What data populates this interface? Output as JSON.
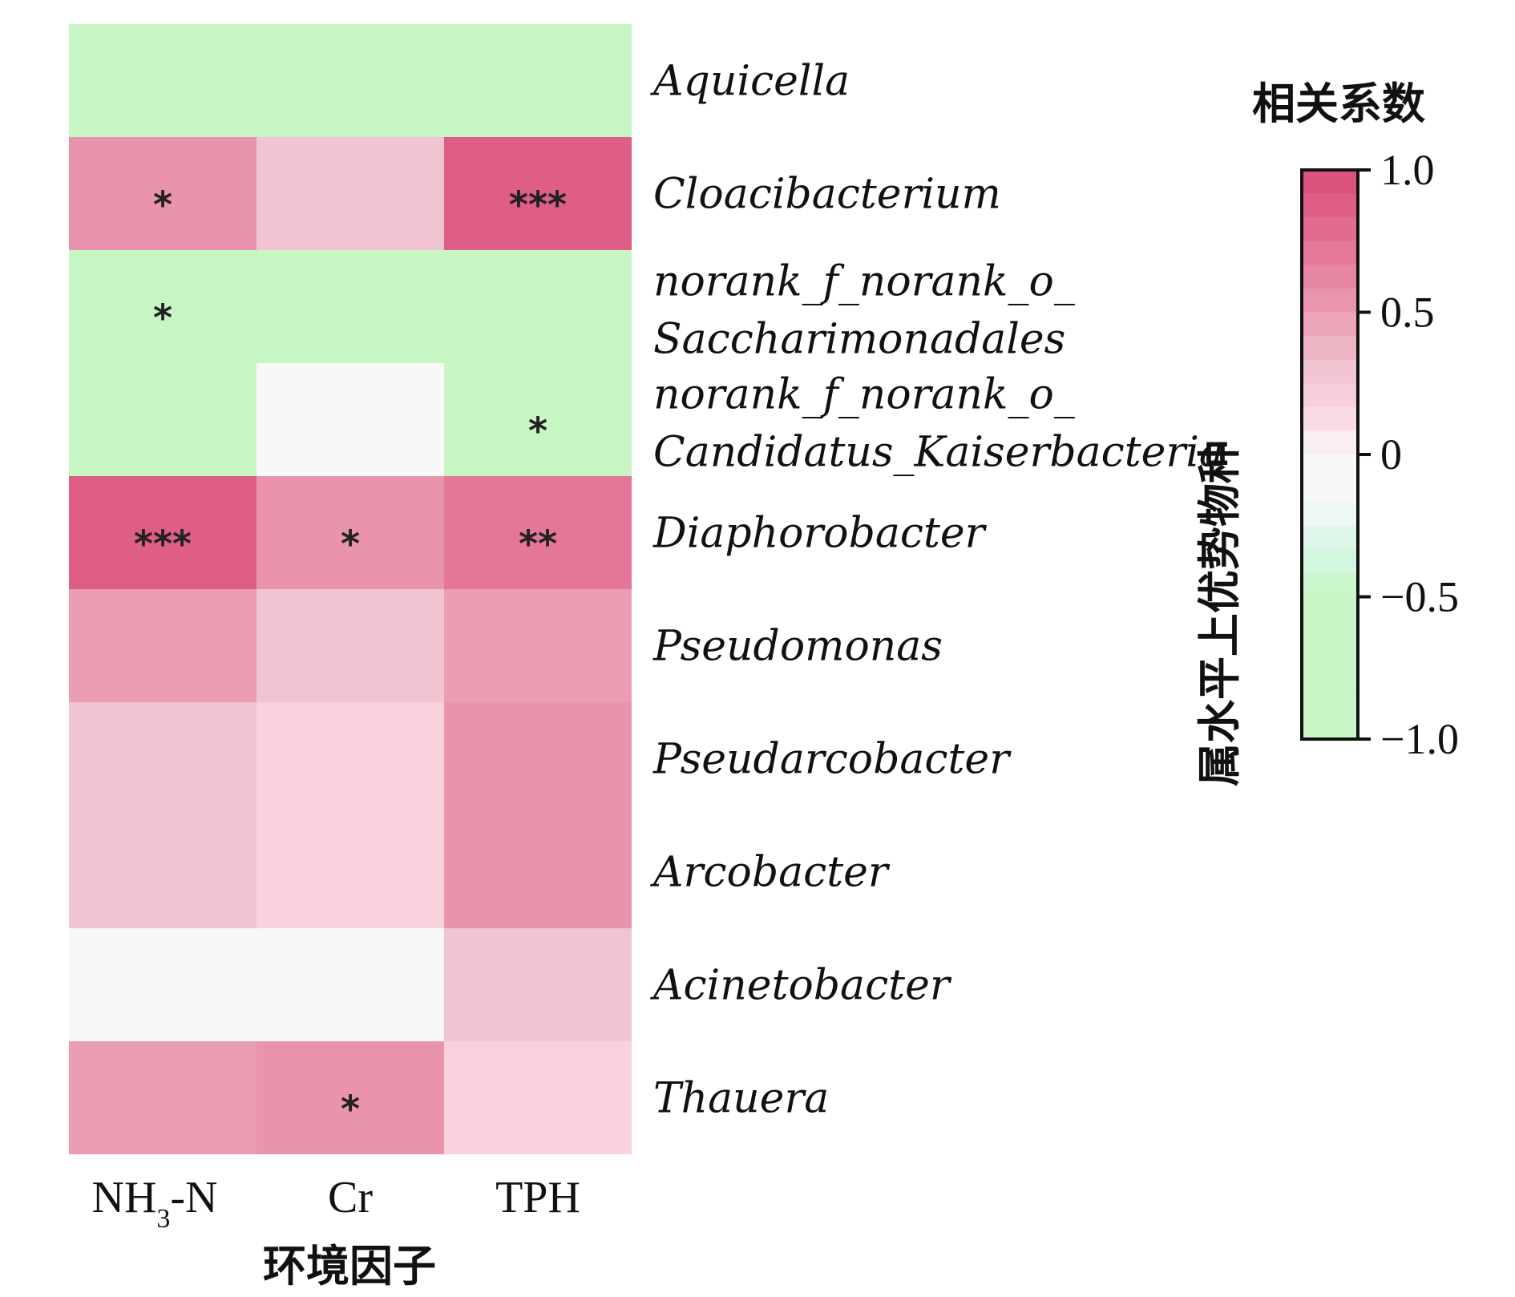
{
  "chart_data": {
    "type": "heatmap",
    "xlabel": "环境因子",
    "ylabel": "属水平上优势物种",
    "legend_title": "相关系数",
    "x_categories": [
      {
        "main": "NH",
        "sub": "3",
        "rest": "-N"
      },
      {
        "main": "Cr",
        "sub": "",
        "rest": ""
      },
      {
        "main": "TPH",
        "sub": "",
        "rest": ""
      }
    ],
    "y_label_lines": [
      [
        "Aquicella"
      ],
      [
        "Cloacibacterium"
      ],
      [
        "norank_f_norank_o_",
        "Saccharimonadales"
      ],
      [
        "norank_f_norank_o_",
        "Candidatus_Kaiserbacteria"
      ],
      [
        "Diaphorobacter"
      ],
      [
        "Pseudomonas"
      ],
      [
        "Pseudarcobacter"
      ],
      [
        "Arcobacter"
      ],
      [
        "Acinetobacter"
      ],
      [
        "Thauera"
      ]
    ],
    "values": [
      [
        -0.6,
        -0.6,
        -0.6
      ],
      [
        0.55,
        0.3,
        0.88
      ],
      [
        -0.6,
        -0.6,
        -0.6
      ],
      [
        -0.6,
        0.0,
        -0.6
      ],
      [
        0.88,
        0.55,
        0.72
      ],
      [
        0.5,
        0.3,
        0.5
      ],
      [
        0.3,
        0.18,
        0.55
      ],
      [
        0.3,
        0.18,
        0.55
      ],
      [
        0.0,
        0.0,
        0.3
      ],
      [
        0.5,
        0.55,
        0.18
      ]
    ],
    "significance": [
      [
        "",
        "",
        ""
      ],
      [
        "*",
        "",
        "***"
      ],
      [
        "*",
        "",
        ""
      ],
      [
        "",
        "",
        "*"
      ],
      [
        "***",
        "*",
        "**"
      ],
      [
        "",
        "",
        ""
      ],
      [
        "",
        "",
        ""
      ],
      [
        "",
        "",
        ""
      ],
      [
        "",
        "",
        ""
      ],
      [
        "",
        "*",
        ""
      ]
    ],
    "colorbar": {
      "range": [
        -1.0,
        1.0
      ],
      "ticks": [
        1.0,
        0.5,
        0,
        -0.5,
        -1.0
      ],
      "tick_labels": [
        "1.0",
        "0.5",
        "0",
        "−0.5",
        "−1.0"
      ]
    },
    "colors": {
      "positive_strong": "#d94b78",
      "positive_mid": "#e88aa5",
      "positive_light": "#f0c4d0",
      "positive_faint": "#fbd6e0",
      "zero": "#f8f8f8",
      "negative": "#c7f5c3",
      "negative_light": "#d5f7e5"
    }
  }
}
